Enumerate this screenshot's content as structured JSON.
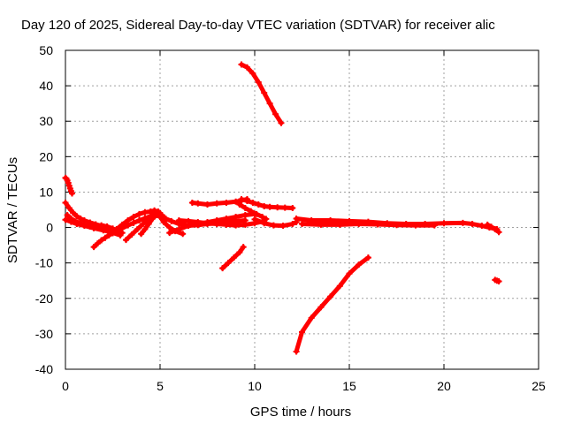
{
  "chart_data": {
    "type": "scatter",
    "title": "Day 120 of 2025, Sidereal Day-to-day VTEC variation (SDTVAR) for receiver alic",
    "xlabel": "GPS time / hours",
    "ylabel": "SDTVAR / TECUs",
    "xlim": [
      0,
      25
    ],
    "ylim": [
      -40,
      50
    ],
    "x_ticks": [
      0,
      5,
      10,
      15,
      20,
      25
    ],
    "y_ticks": [
      -40,
      -30,
      -20,
      -10,
      0,
      10,
      20,
      30,
      40,
      50
    ],
    "grid": true,
    "legend": "none",
    "marker": "plus",
    "color": "#ff0000",
    "series": [
      {
        "x": [
          0.0,
          0.05,
          0.1,
          0.15,
          0.2,
          0.25,
          0.3,
          0.35
        ],
        "values": [
          14.0,
          13.8,
          13.3,
          12.6,
          11.8,
          11.0,
          10.3,
          9.6
        ]
      },
      {
        "x": [
          0.0,
          0.2,
          0.4,
          0.6,
          0.8,
          1.0,
          1.3,
          1.6,
          2.0,
          2.4,
          2.8
        ],
        "values": [
          7.0,
          5.5,
          4.2,
          3.2,
          2.5,
          2.0,
          1.4,
          0.9,
          0.3,
          -0.4,
          -1.2
        ]
      },
      {
        "x": [
          0.1,
          0.3,
          0.5,
          0.8,
          1.0,
          1.3,
          1.6,
          1.9,
          2.2,
          2.5,
          2.8,
          3.0
        ],
        "values": [
          3.5,
          2.5,
          1.8,
          1.2,
          0.7,
          0.3,
          0.5,
          0.6,
          0.3,
          -0.3,
          -1.0,
          -1.5
        ]
      },
      {
        "x": [
          0.0,
          0.3,
          0.6,
          1.0,
          1.5,
          2.0,
          2.5,
          2.9
        ],
        "values": [
          2.2,
          1.6,
          1.0,
          0.5,
          -0.2,
          -0.8,
          -1.5,
          -2.2
        ]
      },
      {
        "x": [
          1.5,
          1.7,
          1.9,
          2.1,
          2.3,
          2.5,
          2.7,
          3.0,
          3.3,
          3.6,
          3.9,
          4.2,
          4.5,
          4.8
        ],
        "values": [
          -5.5,
          -4.5,
          -3.6,
          -2.9,
          -2.2,
          -1.6,
          -1.0,
          -0.2,
          0.6,
          1.3,
          2.0,
          2.6,
          3.2,
          3.6
        ]
      },
      {
        "x": [
          2.4,
          2.7,
          3.0,
          3.3,
          3.6,
          3.9,
          4.2,
          4.5,
          4.7,
          4.9
        ],
        "values": [
          -1.5,
          -0.5,
          0.8,
          2.0,
          3.0,
          3.8,
          4.3,
          4.5,
          4.3,
          3.8
        ]
      },
      {
        "x": [
          3.2,
          3.5,
          3.8,
          4.1,
          4.4,
          4.7,
          5.0
        ],
        "values": [
          -3.5,
          -2.0,
          -0.5,
          1.0,
          2.2,
          3.3,
          4.0
        ]
      },
      {
        "x": [
          4.0,
          4.2,
          4.4,
          4.6,
          4.8,
          5.0,
          5.2,
          5.5,
          5.8,
          6.2
        ],
        "values": [
          -1.8,
          -0.5,
          1.0,
          2.5,
          3.5,
          3.0,
          1.5,
          0.0,
          -1.0,
          -1.8
        ]
      },
      {
        "x": [
          4.5,
          4.7,
          4.9,
          5.1,
          5.3,
          5.6,
          6.0,
          6.5,
          7.0,
          7.5,
          8.0,
          8.5,
          9.0,
          9.5
        ],
        "values": [
          4.5,
          4.8,
          4.5,
          3.5,
          2.5,
          1.8,
          1.0,
          0.5,
          0.7,
          1.0,
          1.2,
          1.5,
          1.8,
          2.0
        ]
      },
      {
        "x": [
          5.5,
          6.0,
          6.5,
          7.0,
          7.5,
          8.0,
          8.5,
          9.0,
          9.5,
          10.0
        ],
        "values": [
          -1.5,
          -0.5,
          0.5,
          1.0,
          1.5,
          2.0,
          2.5,
          3.0,
          3.5,
          3.8
        ]
      },
      {
        "x": [
          6.0,
          6.5,
          7.0,
          7.5,
          8.0,
          8.5,
          9.0,
          9.5,
          10.0,
          10.5
        ],
        "values": [
          2.0,
          1.8,
          1.5,
          1.2,
          1.0,
          0.8,
          0.6,
          0.8,
          1.2,
          1.8
        ]
      },
      {
        "x": [
          6.7,
          7.0,
          7.5,
          8.0,
          8.5,
          9.0,
          9.3,
          9.6
        ],
        "values": [
          7.0,
          6.8,
          6.5,
          6.8,
          7.0,
          7.3,
          7.6,
          8.0
        ]
      },
      {
        "x": [
          9.3,
          9.6,
          9.9,
          10.2,
          10.5,
          10.8,
          11.2,
          11.6,
          12.0
        ],
        "values": [
          8.0,
          7.5,
          7.0,
          6.5,
          6.0,
          5.8,
          5.7,
          5.6,
          5.5
        ]
      },
      {
        "x": [
          9.2,
          9.5,
          9.8,
          10.1,
          10.4,
          10.6
        ],
        "values": [
          6.5,
          5.5,
          4.6,
          3.8,
          3.0,
          2.4
        ]
      },
      {
        "x": [
          10.0,
          10.5,
          11.0,
          11.5,
          12.0,
          12.2
        ],
        "values": [
          2.3,
          1.2,
          0.6,
          0.5,
          1.0,
          1.5
        ]
      },
      {
        "x": [
          9.3,
          9.6,
          9.9,
          10.2,
          10.5,
          10.8,
          11.1,
          11.4
        ],
        "values": [
          46.0,
          45.2,
          43.5,
          41.0,
          38.0,
          35.0,
          32.0,
          29.5
        ]
      },
      {
        "x": [
          8.3,
          8.6,
          8.9,
          9.2,
          9.4
        ],
        "values": [
          -11.5,
          -10.0,
          -8.5,
          -7.0,
          -5.5
        ]
      },
      {
        "x": [
          12.2,
          12.5,
          13.0,
          13.5,
          14.0,
          14.5,
          15.0,
          15.5,
          16.0
        ],
        "values": [
          -35.0,
          -29.5,
          -25.5,
          -22.5,
          -19.5,
          -16.5,
          -13.0,
          -10.5,
          -8.5
        ]
      },
      {
        "x": [
          12.2,
          13.0,
          14.0,
          15.0,
          16.0,
          17.0,
          18.0,
          19.0,
          20.0,
          21.0,
          21.5,
          22.0,
          22.4,
          22.8
        ],
        "values": [
          2.5,
          2.0,
          2.0,
          1.8,
          1.6,
          1.2,
          1.0,
          1.0,
          1.2,
          1.3,
          1.0,
          0.5,
          0.0,
          -0.5
        ]
      },
      {
        "x": [
          12.5,
          13.5,
          14.5,
          15.5,
          16.5,
          17.5,
          18.5,
          19.5
        ],
        "values": [
          1.0,
          0.8,
          0.8,
          1.0,
          0.9,
          0.7,
          0.6,
          0.6
        ]
      },
      {
        "x": [
          22.3,
          22.5,
          22.7,
          22.9
        ],
        "values": [
          0.8,
          0.2,
          -0.5,
          -1.3
        ]
      },
      {
        "x": [
          22.7,
          22.8,
          22.9
        ],
        "values": [
          -14.8,
          -15.0,
          -15.2
        ]
      }
    ]
  }
}
